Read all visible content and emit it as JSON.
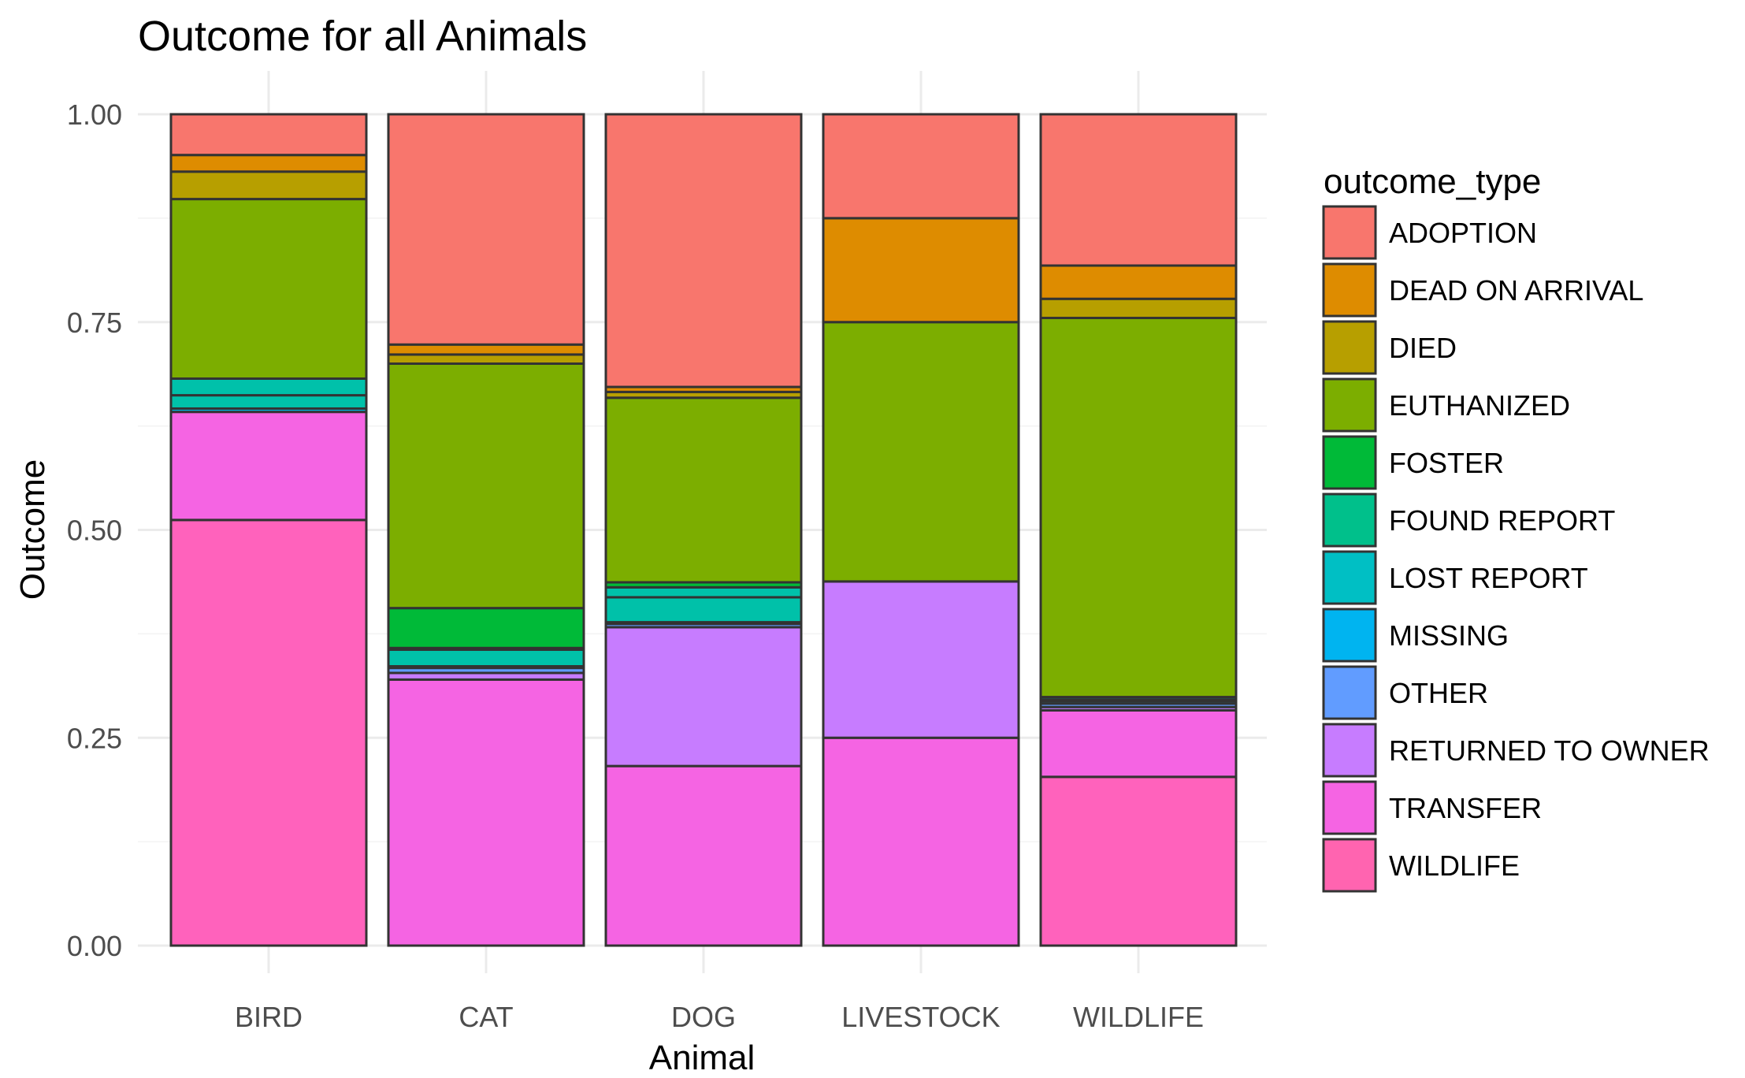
{
  "chart_data": {
    "type": "bar",
    "stacked": true,
    "position": "fill",
    "title": "Outcome for all Animals",
    "xlabel": "Animal",
    "ylabel": "Outcome",
    "ylim": [
      0,
      1
    ],
    "yticks": [
      "0.00",
      "0.25",
      "0.50",
      "0.75",
      "1.00"
    ],
    "grid": true,
    "legend": {
      "title": "outcome_type",
      "placement": "right"
    },
    "categories": [
      "BIRD",
      "CAT",
      "DOG",
      "LIVESTOCK",
      "WILDLIFE"
    ],
    "series": [
      {
        "name": "WILDLIFE",
        "color": "#FF62BC",
        "values": [
          0.512,
          0.0,
          0.0,
          0.0,
          0.203
        ]
      },
      {
        "name": "TRANSFER",
        "color": "#F564E3",
        "values": [
          0.13,
          0.32,
          0.216,
          0.25,
          0.08
        ]
      },
      {
        "name": "RETURNED TO OWNER",
        "color": "#C77CFF",
        "values": [
          0.0,
          0.008,
          0.167,
          0.188,
          0.004
        ]
      },
      {
        "name": "OTHER",
        "color": "#619CFF",
        "values": [
          0.0,
          0.006,
          0.004,
          0.0,
          0.004
        ]
      },
      {
        "name": "MISSING",
        "color": "#00B8E7",
        "values": [
          0.004,
          0.002,
          0.002,
          0.0,
          0.003
        ]
      },
      {
        "name": "LOST REPORT",
        "color": "#00C1A9",
        "values": [
          0.016,
          0.02,
          0.03,
          0.0,
          0.002
        ]
      },
      {
        "name": "FOUND REPORT",
        "color": "#00C1AA",
        "values": [
          0.02,
          0.002,
          0.012,
          0.0,
          0.003
        ]
      },
      {
        "name": "FOSTER",
        "color": "#00BA38",
        "values": [
          0.0,
          0.048,
          0.006,
          0.0,
          0.0
        ]
      },
      {
        "name": "EUTHANIZED",
        "color": "#7CAE00",
        "values": [
          0.216,
          0.294,
          0.222,
          0.312,
          0.456
        ]
      },
      {
        "name": "DIED",
        "color": "#B79F00",
        "values": [
          0.033,
          0.011,
          0.007,
          0.0,
          0.023
        ]
      },
      {
        "name": "DEAD ON ARRIVAL",
        "color": "#DE8C00",
        "values": [
          0.02,
          0.012,
          0.006,
          0.125,
          0.04
        ]
      },
      {
        "name": "ADOPTION",
        "color": "#F8766D",
        "values": [
          0.049,
          0.277,
          0.328,
          0.125,
          0.182
        ]
      }
    ],
    "legend_order": [
      "ADOPTION",
      "DEAD ON ARRIVAL",
      "DIED",
      "EUTHANIZED",
      "FOSTER",
      "FOUND REPORT",
      "LOST REPORT",
      "MISSING",
      "OTHER",
      "RETURNED TO OWNER",
      "TRANSFER",
      "WILDLIFE"
    ],
    "legend_colors": {
      "ADOPTION": "#F8766D",
      "DEAD ON ARRIVAL": "#DE8C00",
      "DIED": "#B79F00",
      "EUTHANIZED": "#7CAE00",
      "FOSTER": "#00BA38",
      "FOUND REPORT": "#00C08B",
      "LOST REPORT": "#00BFC4",
      "MISSING": "#00B4F0",
      "OTHER": "#619CFF",
      "RETURNED TO OWNER": "#C77CFF",
      "TRANSFER": "#F564E3",
      "WILDLIFE": "#FF64B0"
    }
  }
}
